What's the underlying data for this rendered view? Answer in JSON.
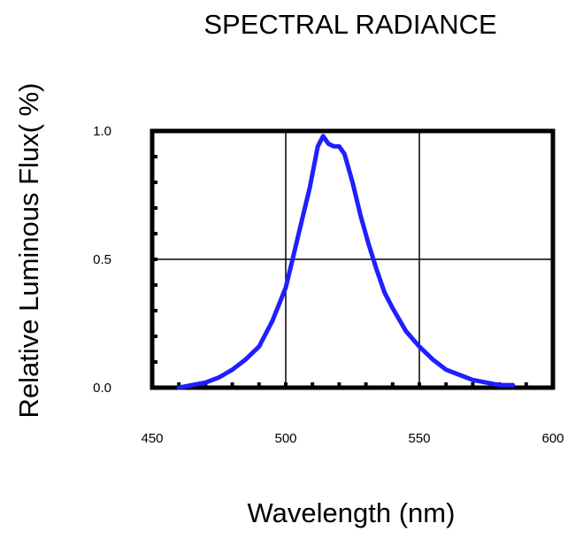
{
  "chart_data": {
    "type": "line",
    "title": "SPECTRAL RADIANCE",
    "xlabel": "Wavelength (nm)",
    "ylabel": "Relative Luminous Flux( %)",
    "xlim": [
      450,
      600
    ],
    "ylim": [
      0,
      1.0
    ],
    "x_ticks": [
      "450",
      "500",
      "550",
      "600"
    ],
    "y_ticks": [
      "0.0",
      "0.5",
      "1.0"
    ],
    "grid": true,
    "series_color": "#1f1fff",
    "series": [
      {
        "x": [
          460,
          465,
          470,
          475,
          480,
          485,
          490,
          495,
          500,
          503,
          506,
          509,
          512,
          514,
          516,
          518,
          520,
          522,
          525,
          528,
          531,
          534,
          537,
          540,
          545,
          550,
          555,
          560,
          565,
          570,
          575,
          580,
          585
        ],
        "y": [
          0.0,
          0.01,
          0.02,
          0.04,
          0.07,
          0.11,
          0.16,
          0.26,
          0.39,
          0.52,
          0.65,
          0.78,
          0.94,
          0.98,
          0.95,
          0.94,
          0.94,
          0.91,
          0.8,
          0.67,
          0.56,
          0.46,
          0.37,
          0.31,
          0.22,
          0.16,
          0.11,
          0.07,
          0.05,
          0.03,
          0.02,
          0.01,
          0.01
        ]
      }
    ]
  }
}
